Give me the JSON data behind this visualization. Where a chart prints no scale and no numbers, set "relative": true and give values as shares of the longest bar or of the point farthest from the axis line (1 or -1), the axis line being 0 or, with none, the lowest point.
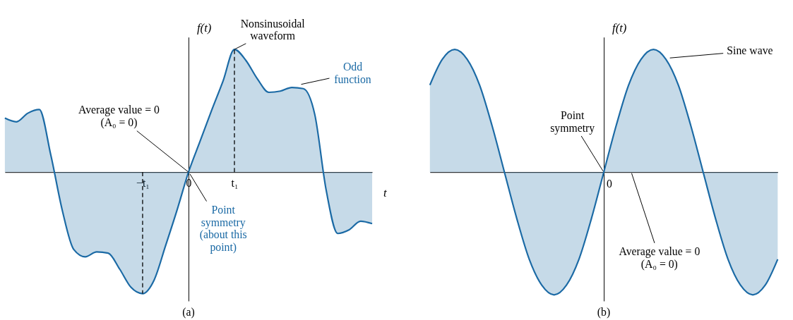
{
  "chart_data": [
    {
      "type": "area",
      "title": "(a)",
      "xlabel": "t",
      "ylabel": "f(t)",
      "relative": true,
      "categories": [
        null,
        null,
        null,
        null,
        null,
        null,
        null,
        null,
        null,
        null,
        null,
        null,
        "−t₁",
        null,
        null,
        null,
        "0",
        null,
        null,
        null,
        "t₁",
        null,
        null,
        null,
        null,
        null,
        null,
        null,
        null,
        null,
        null,
        null,
        null
      ],
      "series": [
        {
          "color": "#1b6aa5",
          "values": [
            0.44,
            0.41,
            0.48,
            0.51,
            0.14,
            -0.31,
            -0.63,
            -0.69,
            -0.65,
            -0.66,
            -0.79,
            -0.94,
            -0.99,
            -0.88,
            -0.6,
            -0.31,
            0,
            0.25,
            0.5,
            0.74,
            1.0,
            0.91,
            0.76,
            0.65,
            0.66,
            0.69,
            0.68,
            0.47,
            -0.15,
            -0.5,
            -0.47,
            -0.4,
            -0.42
          ]
        }
      ],
      "ref_lines": [
        {
          "axis": "x",
          "value": "−t₁",
          "line_style": "dashed"
        },
        {
          "axis": "x",
          "value": "t₁",
          "line_style": "dashed"
        }
      ],
      "annotations": [
        {
          "text": "Nonsinusoidal\nwaveform",
          "x": "t₁",
          "y": 1.0
        },
        "Odd\nfunction",
        {
          "text": "Average value = 0\n(A₀ = 0)",
          "x": "0",
          "y": 0
        },
        "Point\nsymmetry\n(about this\npoint)"
      ]
    },
    {
      "type": "area",
      "title": "(b)",
      "ylabel": "f(t)",
      "relative": true,
      "categories": [
        null,
        null,
        null,
        null,
        null,
        null,
        null,
        null,
        null,
        null,
        null,
        null,
        null,
        null,
        null,
        null,
        null,
        null,
        null,
        null,
        null,
        null,
        null,
        null,
        null,
        null,
        null,
        null,
        null
      ],
      "series": [
        {
          "color": "#1b6aa5",
          "values": [
            0.71,
            0.92,
            1,
            0.92,
            0.71,
            0.38,
            0,
            -0.38,
            -0.71,
            -0.92,
            -1,
            -0.92,
            -0.71,
            -0.38,
            0,
            0.38,
            0.71,
            0.92,
            1,
            0.92,
            0.71,
            0.38,
            0,
            -0.38,
            -0.71,
            -0.92,
            -1,
            -0.92,
            -0.71
          ]
        }
      ],
      "annotations": [
        "Sine wave",
        "Point\nsymmetry",
        "Average value = 0\n(A₀ = 0)",
        "0"
      ]
    }
  ]
}
